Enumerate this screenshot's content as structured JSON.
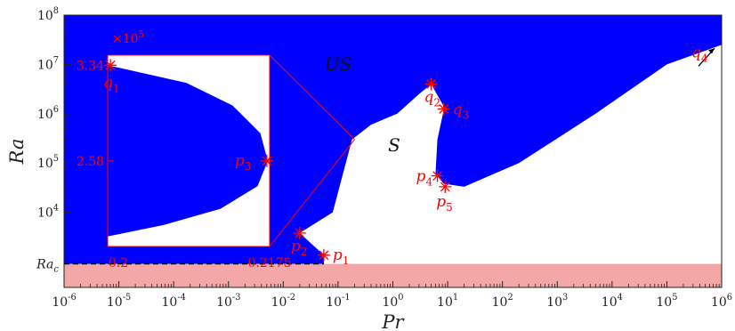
{
  "chart_data": {
    "type": "area",
    "xlabel": "Pr",
    "ylabel": "Ra",
    "xscale": "log",
    "yscale": "log",
    "xlim": [
      1e-06,
      1000000.0
    ],
    "ylim": [
      300,
      100000000.0
    ],
    "x_ticks": [
      {
        "base": "10",
        "exp": "-6"
      },
      {
        "base": "10",
        "exp": "-5"
      },
      {
        "base": "10",
        "exp": "-4"
      },
      {
        "base": "10",
        "exp": "-3"
      },
      {
        "base": "10",
        "exp": "-2"
      },
      {
        "base": "10",
        "exp": "-1"
      },
      {
        "base": "10",
        "exp": "0"
      },
      {
        "base": "10",
        "exp": "1"
      },
      {
        "base": "10",
        "exp": "2"
      },
      {
        "base": "10",
        "exp": "3"
      },
      {
        "base": "10",
        "exp": "4"
      },
      {
        "base": "10",
        "exp": "5"
      },
      {
        "base": "10",
        "exp": "6"
      }
    ],
    "y_ticks": [
      {
        "base": "10",
        "exp": "4"
      },
      {
        "base": "10",
        "exp": "5"
      },
      {
        "base": "10",
        "exp": "6"
      },
      {
        "base": "10",
        "exp": "7"
      },
      {
        "base": "10",
        "exp": "8"
      }
    ],
    "critical_label": {
      "main": "Ra",
      "sub": "c"
    },
    "ra_c": 900,
    "regions": [
      {
        "label": "US",
        "color": "#0000ff"
      },
      {
        "label": "S",
        "color": "#ffffff"
      }
    ],
    "subcritical_band_color": "#f4a7a7",
    "unstable_boundary_upper": [
      {
        "pr": 0.055,
        "ra": 1350
      },
      {
        "pr": 0.02,
        "ra": 3800
      },
      {
        "pr": 0.08,
        "ra": 10000
      },
      {
        "pr": 0.18,
        "ra": 300000
      },
      {
        "pr": 0.4,
        "ra": 600000
      },
      {
        "pr": 1.2,
        "ra": 1000000
      },
      {
        "pr": 3,
        "ra": 2500000
      },
      {
        "pr": 5,
        "ra": 4000000
      },
      {
        "pr": 8.2,
        "ra": 1500000
      },
      {
        "pr": 8.5,
        "ra": 1200000
      },
      {
        "pr": 6.5,
        "ra": 300000
      },
      {
        "pr": 6.0,
        "ra": 60000
      },
      {
        "pr": 8.5,
        "ra": 38000
      },
      {
        "pr": 20,
        "ra": 33000
      },
      {
        "pr": 200,
        "ra": 100000
      },
      {
        "pr": 5000,
        "ra": 1000000
      },
      {
        "pr": 100000,
        "ra": 10000000
      },
      {
        "pr": 1000000,
        "ra": 25000000
      }
    ],
    "points": [
      {
        "name": "p",
        "sub": "1",
        "pr": 0.055,
        "ra": 1350
      },
      {
        "name": "p",
        "sub": "2",
        "pr": 0.02,
        "ra": 3800
      },
      {
        "name": "q",
        "sub": "2",
        "pr": 5,
        "ra": 4000000
      },
      {
        "name": "q",
        "sub": "3",
        "pr": 8.5,
        "ra": 1250000
      },
      {
        "name": "p",
        "sub": "4",
        "pr": 6.5,
        "ra": 55000
      },
      {
        "name": "p",
        "sub": "5",
        "pr": 9,
        "ra": 33000
      },
      {
        "name": "q",
        "sub": "4",
        "pr": 1000000,
        "ra": 25000000
      }
    ],
    "inset": {
      "exponent_label": {
        "prefix": "×",
        "base": "10",
        "exp": "5"
      },
      "x_ticks": [
        "0.2",
        "0.2175"
      ],
      "y_ticks": [
        "3.34",
        "2.58"
      ],
      "xlim": [
        0.2,
        0.2175
      ],
      "boundary": [
        {
          "x": 0.2,
          "y": 3.34
        },
        {
          "x": 0.2085,
          "y": 3.2
        },
        {
          "x": 0.2135,
          "y": 3.02
        },
        {
          "x": 0.2165,
          "y": 2.8
        },
        {
          "x": 0.2173,
          "y": 2.58
        },
        {
          "x": 0.2162,
          "y": 2.38
        },
        {
          "x": 0.2122,
          "y": 2.2
        },
        {
          "x": 0.206,
          "y": 2.07
        },
        {
          "x": 0.2,
          "y": 1.98
        }
      ],
      "points": [
        {
          "name": "q",
          "sub": "1",
          "x": 0.2003,
          "y": 3.34
        },
        {
          "name": "p",
          "sub": "3",
          "x": 0.2172,
          "y": 2.58
        }
      ]
    }
  }
}
